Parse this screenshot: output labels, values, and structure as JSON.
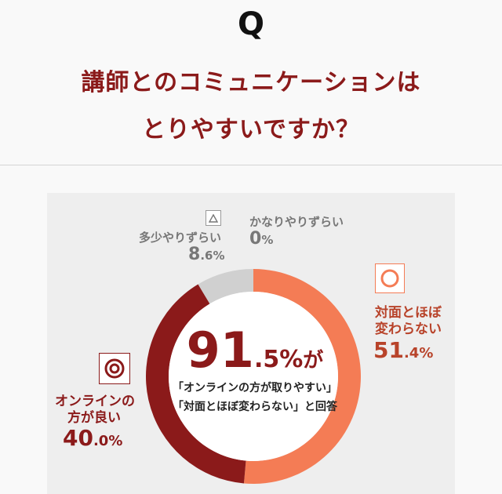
{
  "header": {
    "q_mark": "Q",
    "question_line1": "講師とのコミュニケーションは",
    "question_line2": "とりやすいですか？"
  },
  "center": {
    "pct_big": "91",
    "pct_small": ".5%",
    "pct_suffix": "が",
    "line1": "「オンラインの方が取りやすい」",
    "line2": "「対面とほぼ変わらない」と回答"
  },
  "labels": {
    "difficult": {
      "text": "多少やりずらい",
      "big": "8",
      "small": ".6%"
    },
    "very_difficult": {
      "text": "かなりやりずらい",
      "big": "0",
      "small": "%"
    },
    "same": {
      "text1": "対面とほぼ",
      "text2": "変わらない",
      "big": "51",
      "small": ".4%"
    },
    "online": {
      "text1": "オンラインの",
      "text2": "方が良い",
      "big": "40",
      "small": ".0%"
    }
  },
  "icons": {
    "difficult": "triangle-icon",
    "same": "circle-icon",
    "online": "double-circle-icon"
  },
  "colors": {
    "accent_dark": "#8b1a1a",
    "accent_orange": "#f47c55",
    "gray_segment": "#d0d0d0"
  },
  "chart_data": {
    "type": "pie",
    "style": "donut",
    "slices": [
      {
        "label": "対面とほぼ変わらない",
        "value": 51.4,
        "color": "#f47c55"
      },
      {
        "label": "オンラインの方が良い",
        "value": 40.0,
        "color": "#8b1a1a"
      },
      {
        "label": "多少やりずらい",
        "value": 8.6,
        "color": "#d0d0d0"
      },
      {
        "label": "かなりやりずらい",
        "value": 0,
        "color": "#bbbbbb"
      }
    ],
    "center_label": "91.5%が"
  }
}
